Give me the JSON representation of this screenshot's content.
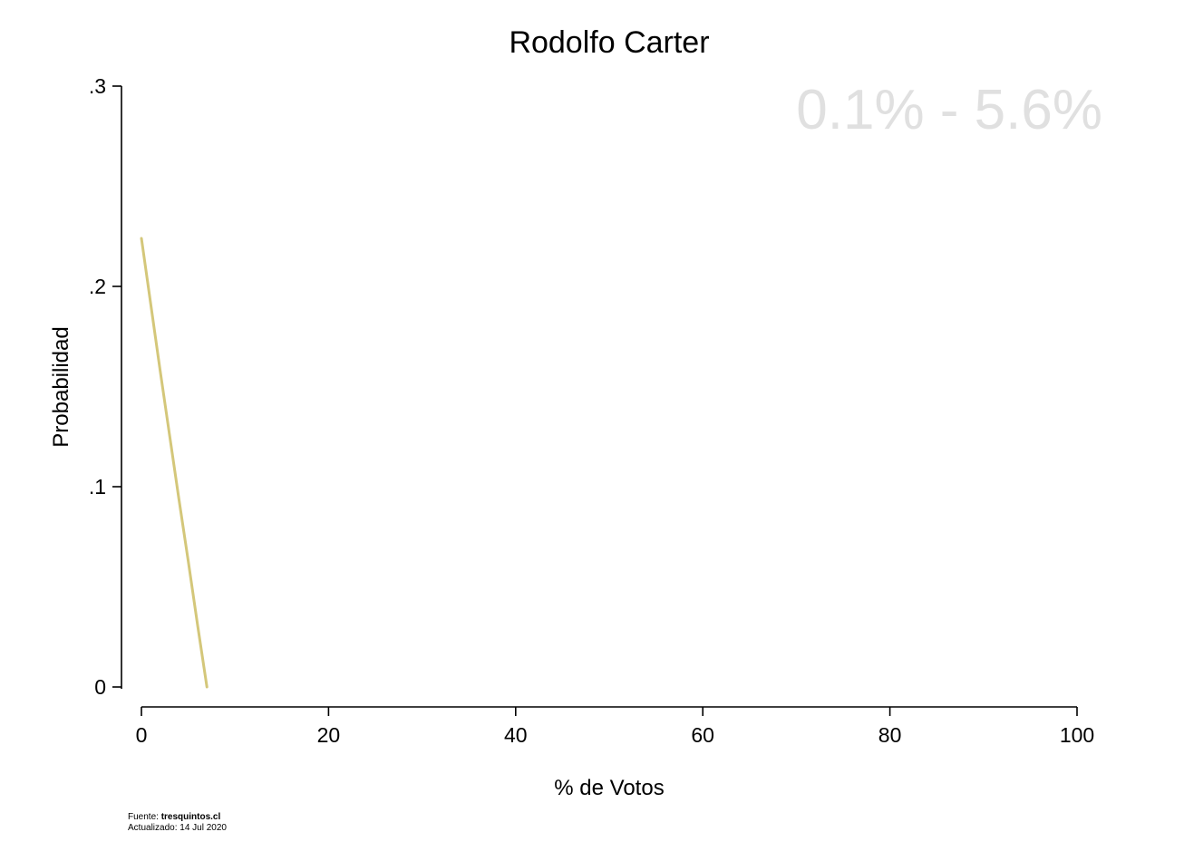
{
  "chart_data": {
    "type": "line",
    "title": "Rodolfo Carter",
    "annotation": "0.1% - 5.6%",
    "xlabel": "% de Votos",
    "ylabel": "Probabilidad",
    "xlim": [
      0,
      100
    ],
    "ylim": [
      0,
      0.3
    ],
    "x_ticks": [
      0,
      20,
      40,
      60,
      80,
      100
    ],
    "x_tick_labels": [
      "0",
      "20",
      "40",
      "60",
      "80",
      "100"
    ],
    "y_ticks": [
      0,
      0.1,
      0.2,
      0.3
    ],
    "y_tick_labels": [
      "0",
      ".1",
      ".2",
      ".3"
    ],
    "grid": false,
    "series": [
      {
        "color": "#d4c77a",
        "x": [
          0,
          1,
          2,
          3,
          4,
          5,
          6,
          7
        ],
        "y": [
          0.224,
          0.191,
          0.158,
          0.126,
          0.094,
          0.063,
          0.031,
          0.0
        ]
      }
    ]
  },
  "footer": {
    "source_label": "Fuente: ",
    "source_name": "tresquintos.cl",
    "updated": "Actualizado: 14 Jul 2020"
  }
}
